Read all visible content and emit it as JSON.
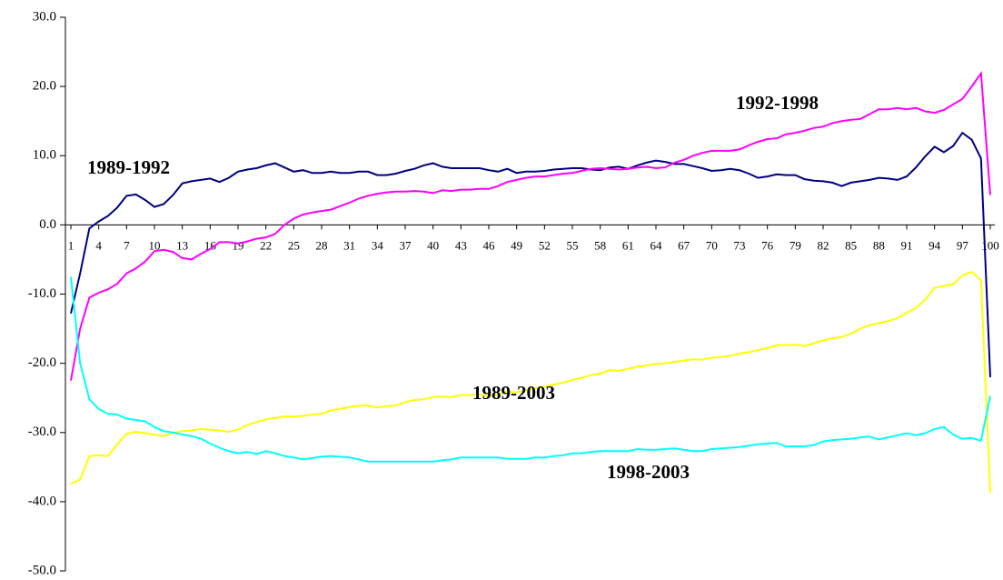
{
  "chart_data": {
    "type": "line",
    "categories": [
      "1",
      null,
      null,
      "4",
      null,
      null,
      "7",
      null,
      null,
      "10",
      null,
      null,
      "13",
      null,
      null,
      "16",
      null,
      null,
      "19",
      null,
      null,
      "22",
      null,
      null,
      "25",
      null,
      null,
      "28",
      null,
      null,
      "31",
      null,
      null,
      "34",
      null,
      null,
      "37",
      null,
      null,
      "40",
      null,
      null,
      "43",
      null,
      null,
      "46",
      null,
      null,
      "49",
      null,
      null,
      "52",
      null,
      null,
      "55",
      null,
      null,
      "58",
      null,
      null,
      "61",
      null,
      null,
      "64",
      null,
      null,
      "67",
      null,
      null,
      "70",
      null,
      null,
      "73",
      null,
      null,
      "76",
      null,
      null,
      "79",
      null,
      null,
      "82",
      null,
      null,
      "85",
      null,
      null,
      "88",
      null,
      null,
      "91",
      null,
      null,
      "94",
      null,
      null,
      "97",
      null,
      null,
      "100"
    ],
    "ylim": [
      -50,
      30
    ],
    "yticks": [
      {
        "value": -50,
        "label": "-50.0"
      },
      {
        "value": -40,
        "label": "-40.0"
      },
      {
        "value": -30,
        "label": "-30.0"
      },
      {
        "value": -20,
        "label": "-20.0"
      },
      {
        "value": -10,
        "label": "-10.0"
      },
      {
        "value": 0,
        "label": "0.0"
      },
      {
        "value": 10,
        "label": "10.0"
      },
      {
        "value": 20,
        "label": "20.0"
      },
      {
        "value": 30,
        "label": "30.0"
      }
    ],
    "series": [
      {
        "name": "1989-1992",
        "color": "#000080",
        "values": [
          -12.8,
          -7,
          -0.5,
          0.5,
          1.3,
          2.5,
          4.2,
          4.4,
          3.6,
          2.6,
          3,
          4.3,
          6,
          6.3,
          6.5,
          6.7,
          6.2,
          6.8,
          7.7,
          8,
          8.2,
          8.6,
          8.9,
          8.3,
          7.7,
          7.9,
          7.5,
          7.5,
          7.7,
          7.5,
          7.5,
          7.7,
          7.7,
          7.2,
          7.2,
          7.4,
          7.8,
          8.1,
          8.6,
          8.9,
          8.4,
          8.2,
          8.2,
          8.2,
          8.2,
          7.9,
          7.7,
          8.1,
          7.5,
          7.7,
          7.7,
          7.8,
          8,
          8.1,
          8.2,
          8.2,
          8,
          7.9,
          8.3,
          8.4,
          8.1,
          8.6,
          9,
          9.3,
          9.1,
          8.8,
          8.8,
          8.5,
          8.2,
          7.8,
          7.9,
          8.1,
          7.9,
          7.4,
          6.8,
          7,
          7.3,
          7.2,
          7.2,
          6.6,
          6.4,
          6.3,
          6.1,
          5.6,
          6.1,
          6.3,
          6.5,
          6.8,
          6.7,
          6.5,
          7,
          8.3,
          9.9,
          11.3,
          10.5,
          11.4,
          13.3,
          12.3,
          9.6,
          -22
        ]
      },
      {
        "name": "1992-1998",
        "color": "#ff00ff",
        "values": [
          -22.5,
          -15,
          -10.5,
          -9.8,
          -9.3,
          -8.5,
          -7,
          -6.3,
          -5.3,
          -3.8,
          -3.6,
          -3.9,
          -4.8,
          -5,
          -4.2,
          -3.5,
          -2.5,
          -2.5,
          -2.7,
          -2.4,
          -2,
          -1.8,
          -1.3,
          0,
          0.9,
          1.5,
          1.8,
          2,
          2.2,
          2.7,
          3.2,
          3.8,
          4.2,
          4.5,
          4.7,
          4.8,
          4.8,
          4.9,
          4.8,
          4.6,
          5,
          4.9,
          5.1,
          5.1,
          5.2,
          5.2,
          5.6,
          6.2,
          6.5,
          6.8,
          7,
          7,
          7.2,
          7.4,
          7.5,
          7.8,
          8.1,
          8.2,
          8.1,
          8,
          8.1,
          8.3,
          8.4,
          8.2,
          8.3,
          9,
          9.4,
          10,
          10.4,
          10.7,
          10.7,
          10.7,
          10.9,
          11.5,
          12,
          12.4,
          12.5,
          13.1,
          13.3,
          13.6,
          14,
          14.2,
          14.7,
          15,
          15.2,
          15.3,
          16,
          16.7,
          16.7,
          16.9,
          16.7,
          16.9,
          16.4,
          16.2,
          16.6,
          17.4,
          18.2,
          20,
          21.9,
          4.3
        ]
      },
      {
        "name": "1989-2003",
        "color": "#ffff00",
        "values": [
          -37.4,
          -36.8,
          -33.4,
          -33.3,
          -33.4,
          -31.7,
          -30.2,
          -29.9,
          -30.1,
          -30.3,
          -30.5,
          -30,
          -29.8,
          -29.7,
          -29.5,
          -29.6,
          -29.7,
          -29.9,
          -29.6,
          -28.9,
          -28.5,
          -28.1,
          -27.9,
          -27.7,
          -27.7,
          -27.6,
          -27.4,
          -27.3,
          -26.8,
          -26.6,
          -26.3,
          -26.1,
          -26.1,
          -26.4,
          -26.2,
          -26.1,
          -25.6,
          -25.3,
          -25.2,
          -24.9,
          -24.8,
          -24.9,
          -24.6,
          -24.6,
          -24.5,
          -24.8,
          -24.5,
          -24.1,
          -24.2,
          -23.9,
          -23.6,
          -23.4,
          -23.1,
          -22.8,
          -22.4,
          -22.1,
          -21.7,
          -21.5,
          -21,
          -21.1,
          -20.8,
          -20.5,
          -20.3,
          -20.1,
          -20,
          -19.8,
          -19.6,
          -19.4,
          -19.5,
          -19.2,
          -19.1,
          -18.9,
          -18.6,
          -18.4,
          -18.1,
          -17.8,
          -17.4,
          -17.4,
          -17.3,
          -17.5,
          -17.1,
          -16.7,
          -16.4,
          -16.2,
          -15.7,
          -15,
          -14.5,
          -14.2,
          -13.9,
          -13.5,
          -12.7,
          -12,
          -10.8,
          -9.1,
          -8.8,
          -8.6,
          -7.3,
          -6.8,
          -8,
          -38.7
        ]
      },
      {
        "name": "1998-2003",
        "color": "#00ffff",
        "values": [
          -7.5,
          -20,
          -25.2,
          -26.6,
          -27.3,
          -27.4,
          -28,
          -28.2,
          -28.4,
          -29.2,
          -29.8,
          -30,
          -30.3,
          -30.5,
          -30.9,
          -31.6,
          -32.2,
          -32.7,
          -33,
          -32.8,
          -33.1,
          -32.7,
          -33,
          -33.4,
          -33.6,
          -33.9,
          -33.7,
          -33.5,
          -33.4,
          -33.5,
          -33.6,
          -33.9,
          -34.2,
          -34.2,
          -34.2,
          -34.2,
          -34.2,
          -34.2,
          -34.2,
          -34.2,
          -34,
          -33.9,
          -33.6,
          -33.6,
          -33.6,
          -33.6,
          -33.6,
          -33.8,
          -33.8,
          -33.8,
          -33.6,
          -33.6,
          -33.4,
          -33.3,
          -33,
          -33,
          -32.8,
          -32.7,
          -32.7,
          -32.7,
          -32.7,
          -32.4,
          -32.5,
          -32.5,
          -32.4,
          -32.3,
          -32.5,
          -32.7,
          -32.7,
          -32.4,
          -32.3,
          -32.2,
          -32.1,
          -31.9,
          -31.7,
          -31.6,
          -31.5,
          -32,
          -32,
          -32,
          -31.8,
          -31.3,
          -31.1,
          -31,
          -30.9,
          -30.7,
          -30.6,
          -31,
          -30.7,
          -30.4,
          -30.1,
          -30.4,
          -30.1,
          -29.5,
          -29.2,
          -30.3,
          -30.9,
          -30.8,
          -31.2,
          -24.7
        ]
      }
    ]
  }
}
